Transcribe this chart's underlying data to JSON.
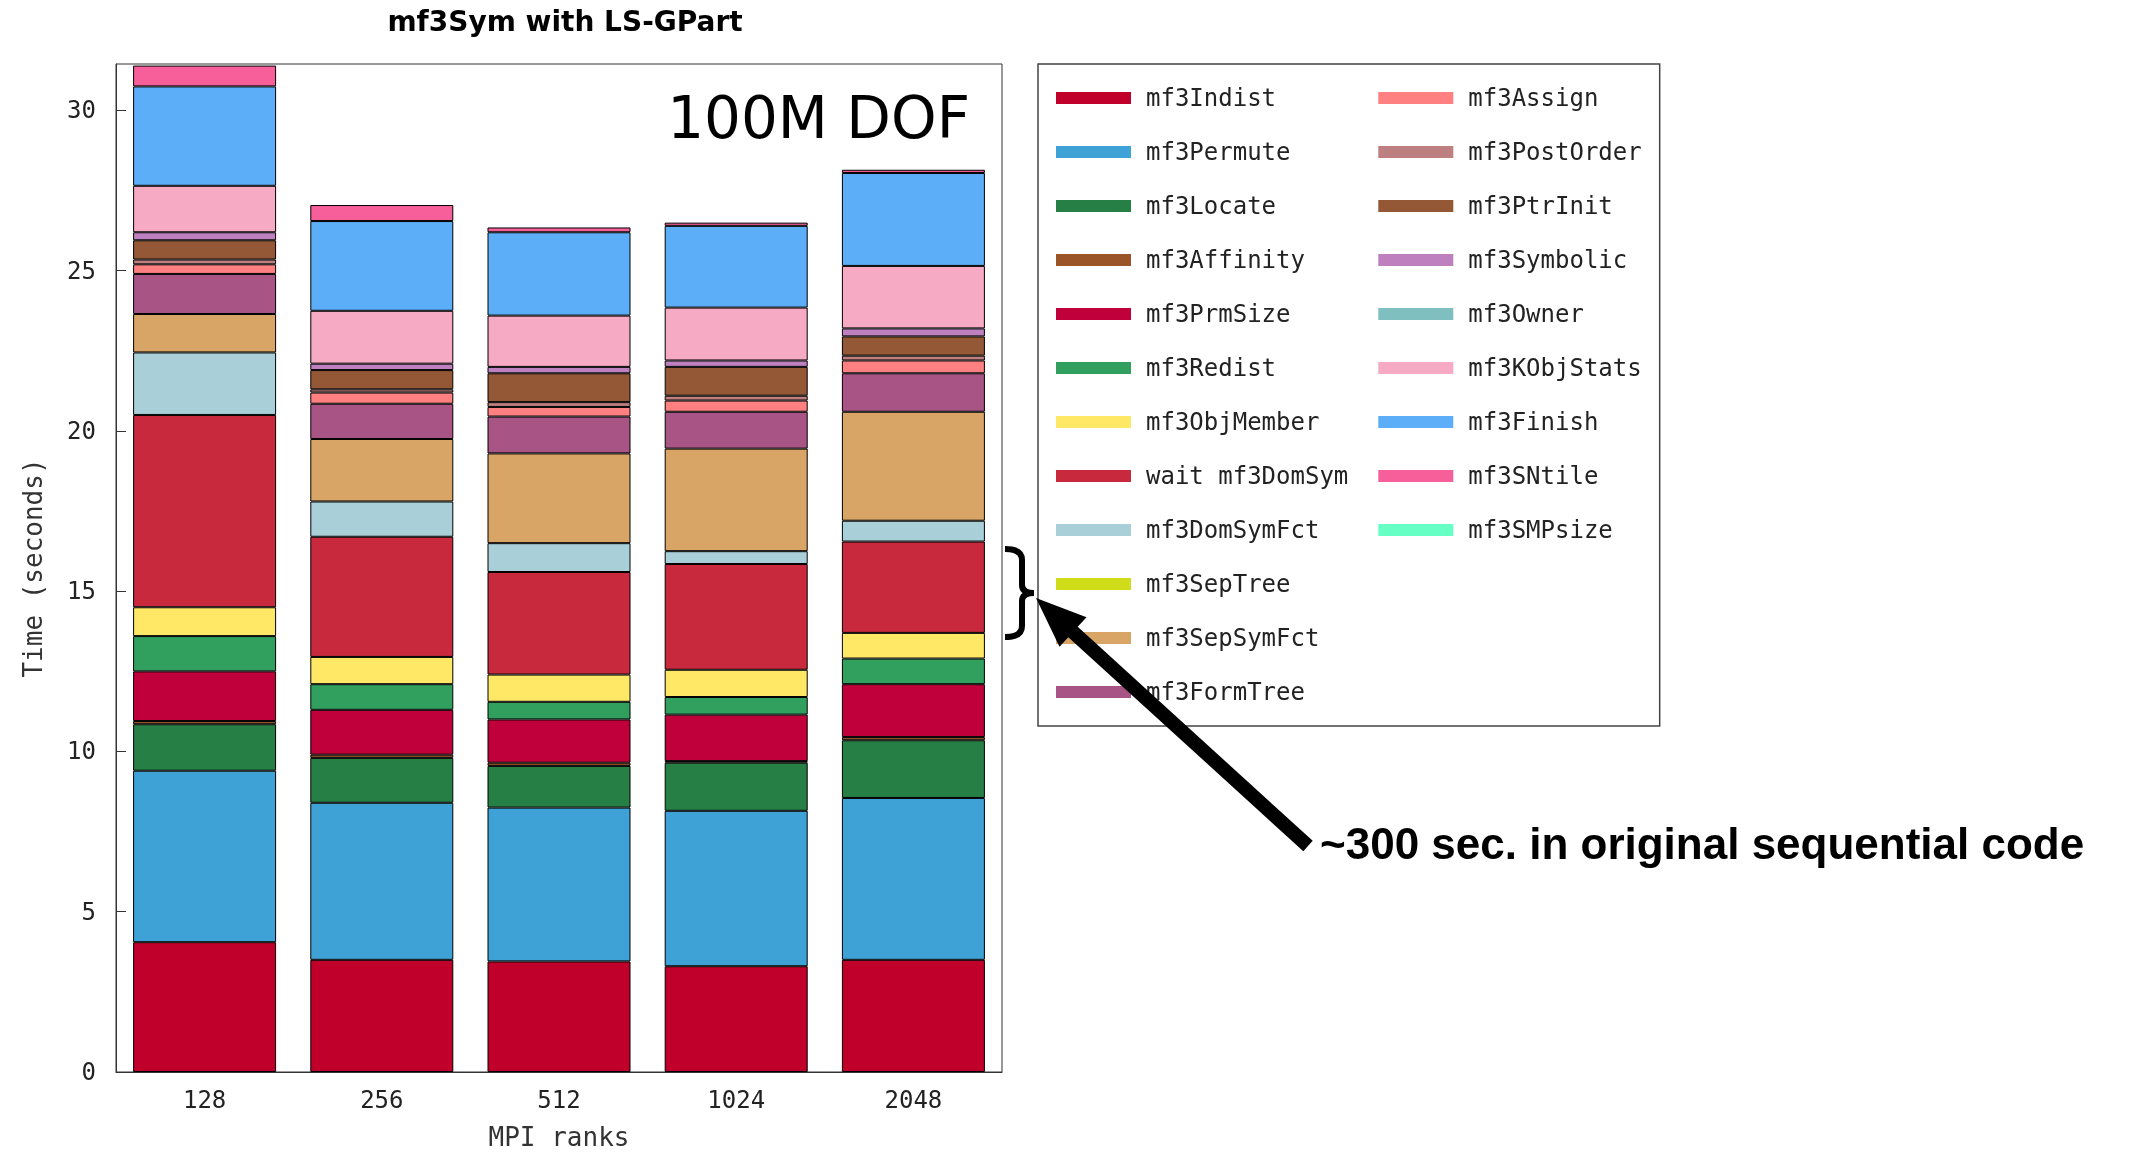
{
  "chart_data": {
    "type": "bar",
    "stacked": true,
    "title": "mf3Sym with LS-GPart",
    "xlabel": "MPI ranks",
    "ylabel": "Time (seconds)",
    "categories": [
      "128",
      "256",
      "512",
      "1024",
      "2048"
    ],
    "ylim": [
      0,
      31.45
    ],
    "yticks": [
      0,
      5,
      10,
      15,
      20,
      25,
      30
    ],
    "grid": false,
    "legend": "right",
    "annotations": [
      "100M DOF",
      "~300 sec. in original sequential code"
    ],
    "series": [
      {
        "name": "mf3Indist",
        "color": "#c0002a",
        "values": [
          4.05,
          3.5,
          3.45,
          3.3,
          3.5
        ]
      },
      {
        "name": "mf3Permute",
        "color": "#3fa2d6",
        "values": [
          5.35,
          4.9,
          4.8,
          4.85,
          5.05
        ]
      },
      {
        "name": "mf3Locate",
        "color": "#268045",
        "values": [
          1.45,
          1.4,
          1.3,
          1.5,
          1.8
        ]
      },
      {
        "name": "mf3Affinity",
        "color": "#9a5428",
        "values": [
          0.1,
          0.1,
          0.1,
          0.05,
          0.1
        ]
      },
      {
        "name": "mf3PrmSize",
        "color": "#c0003a",
        "values": [
          1.55,
          1.4,
          1.35,
          1.45,
          1.65
        ]
      },
      {
        "name": "mf3Redist",
        "color": "#31a05f",
        "values": [
          1.1,
          0.8,
          0.55,
          0.55,
          0.8
        ]
      },
      {
        "name": "mf3ObjMember",
        "color": "#ffe866",
        "values": [
          0.9,
          0.85,
          0.85,
          0.85,
          0.8
        ]
      },
      {
        "name": "wait mf3DomSym",
        "color": "#c8293c",
        "values": [
          6.0,
          3.75,
          3.2,
          3.3,
          2.85
        ]
      },
      {
        "name": "mf3DomSymFct",
        "color": "#a9d0d9",
        "values": [
          1.95,
          1.1,
          0.9,
          0.4,
          0.65
        ]
      },
      {
        "name": "mf3SepTree",
        "color": "#d0dc1a",
        "values": [
          0,
          0,
          0,
          0,
          0
        ]
      },
      {
        "name": "mf3SepSymFct",
        "color": "#d9a566",
        "values": [
          1.2,
          1.95,
          2.8,
          3.2,
          3.4
        ]
      },
      {
        "name": "mf3FormTree",
        "color": "#a85585",
        "values": [
          1.25,
          1.1,
          1.15,
          1.15,
          1.2
        ]
      },
      {
        "name": "mf3Assign",
        "color": "#ff8080",
        "values": [
          0.3,
          0.35,
          0.3,
          0.35,
          0.4
        ]
      },
      {
        "name": "mf3PostOrder",
        "color": "#bd7f7f",
        "values": [
          0.15,
          0.1,
          0.15,
          0.15,
          0.15
        ]
      },
      {
        "name": "mf3PtrInit",
        "color": "#955837",
        "values": [
          0.6,
          0.6,
          0.9,
          0.9,
          0.6
        ]
      },
      {
        "name": "mf3Symbolic",
        "color": "#bf80c0",
        "values": [
          0.25,
          0.2,
          0.2,
          0.2,
          0.25
        ]
      },
      {
        "name": "mf3Owner",
        "color": "#80bfbf",
        "values": [
          0,
          0,
          0,
          0,
          0
        ]
      },
      {
        "name": "mf3KObjStats",
        "color": "#f7aac3",
        "values": [
          1.45,
          1.65,
          1.6,
          1.65,
          1.95
        ]
      },
      {
        "name": "mf3Finish",
        "color": "#5daef8",
        "values": [
          3.1,
          2.8,
          2.6,
          2.55,
          2.9
        ]
      },
      {
        "name": "mf3SNtile",
        "color": "#f65f9a",
        "values": [
          0.65,
          0.5,
          0.15,
          0.1,
          0.1
        ]
      },
      {
        "name": "mf3SMPsize",
        "color": "#66ffc4",
        "values": [
          0,
          0,
          0,
          0,
          0
        ]
      }
    ]
  }
}
